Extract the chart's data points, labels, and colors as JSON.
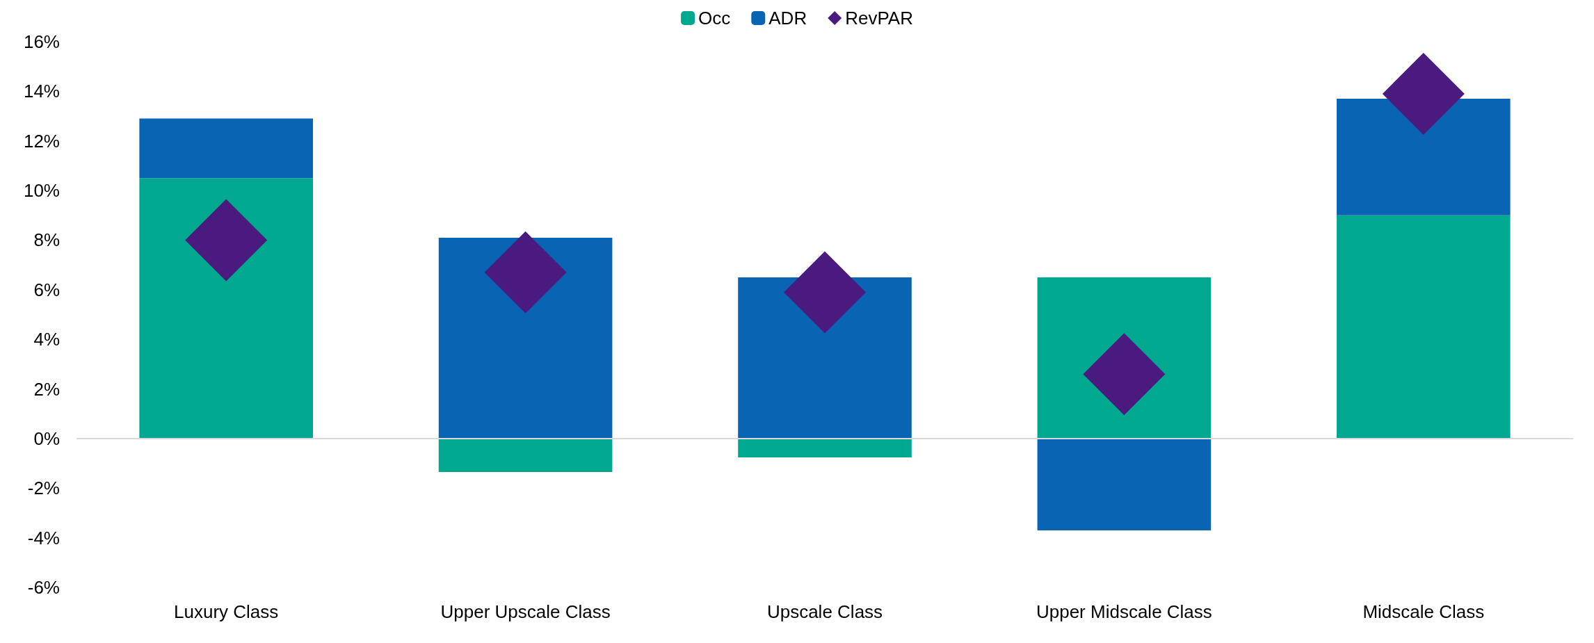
{
  "chart_data": {
    "type": "bar",
    "stacked": true,
    "categories": [
      "Luxury Class",
      "Upper Upscale Class",
      "Upscale Class",
      "Upper Midscale Class",
      "Midscale Class"
    ],
    "series": [
      {
        "name": "Occ",
        "color": "#00a88f",
        "values": [
          10.5,
          -1.35,
          -0.76,
          6.5,
          9.0
        ]
      },
      {
        "name": "ADR",
        "color": "#0a64b4",
        "values": [
          2.4,
          8.1,
          6.5,
          -3.7,
          4.7
        ]
      },
      {
        "name": "RevPAR",
        "type": "scatter",
        "color": "#4b1a7e",
        "x": [
          "Luxury Class",
          "Upper Upscale Class",
          "Upscale Class",
          "Upper Midscale Class",
          "Midscale Class"
        ],
        "values": [
          8.0,
          6.7,
          5.9,
          2.6,
          13.9
        ]
      }
    ],
    "marker": "diamond",
    "legend": "top",
    "grid": false,
    "ref_lines": [
      {
        "axis": "y",
        "value": 0,
        "color": "#d9d9d9"
      }
    ],
    "ylim": [
      -6,
      16
    ],
    "yticks": [
      {
        "value": -6,
        "label": "-6%"
      },
      {
        "value": -4,
        "label": "-4%"
      },
      {
        "value": -2,
        "label": "-2%"
      },
      {
        "value": 0,
        "label": "0%"
      },
      {
        "value": 2,
        "label": "2%"
      },
      {
        "value": 4,
        "label": "4%"
      },
      {
        "value": 6,
        "label": "6%"
      },
      {
        "value": 8,
        "label": "8%"
      },
      {
        "value": 10,
        "label": "10%"
      },
      {
        "value": 12,
        "label": "12%"
      },
      {
        "value": 14,
        "label": "14%"
      },
      {
        "value": 16,
        "label": "16%"
      }
    ]
  }
}
